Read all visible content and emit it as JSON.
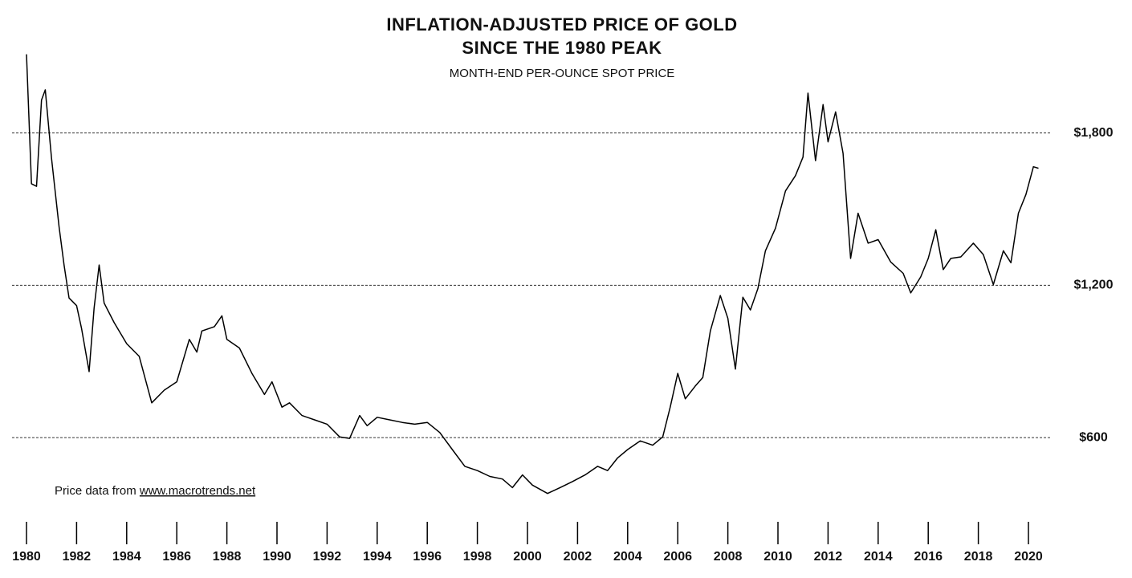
{
  "chart_data": {
    "type": "line",
    "title": "INFLATION-ADJUSTED PRICE OF GOLD",
    "title2": "SINCE THE 1980 PEAK",
    "subtitle": "MONTH-END PER-OUNCE SPOT PRICE",
    "source": "Price data from",
    "source_link": "www.macrotrends.net",
    "color": "#000000",
    "grid": true,
    "x": [
      1980.0,
      1980.2,
      1980.4,
      1980.6,
      1980.75,
      1981.0,
      1981.3,
      1981.5,
      1981.7,
      1982.0,
      1982.2,
      1982.5,
      1982.7,
      1982.9,
      1983.1,
      1983.5,
      1984.0,
      1984.5,
      1985.0,
      1985.5,
      1986.0,
      1986.5,
      1986.8,
      1987.0,
      1987.5,
      1987.8,
      1988.0,
      1988.5,
      1989.0,
      1989.5,
      1989.8,
      1990.2,
      1990.5,
      1991.0,
      1991.5,
      1992.0,
      1992.5,
      1992.9,
      1993.3,
      1993.6,
      1994.0,
      1994.5,
      1995.0,
      1995.5,
      1996.0,
      1996.5,
      1997.0,
      1997.5,
      1998.0,
      1998.5,
      1999.0,
      1999.4,
      1999.8,
      2000.2,
      2000.8,
      2001.3,
      2001.8,
      2002.3,
      2002.8,
      2003.2,
      2003.6,
      2004.0,
      2004.5,
      2005.0,
      2005.4,
      2005.7,
      2006.0,
      2006.3,
      2006.7,
      2007.0,
      2007.3,
      2007.7,
      2008.0,
      2008.3,
      2008.6,
      2008.9,
      2009.2,
      2009.5,
      2009.9,
      2010.3,
      2010.7,
      2011.0,
      2011.2,
      2011.5,
      2011.8,
      2012.0,
      2012.3,
      2012.6,
      2012.9,
      2013.2,
      2013.6,
      2014.0,
      2014.5,
      2015.0,
      2015.3,
      2015.7,
      2016.0,
      2016.3,
      2016.6,
      2016.9,
      2017.3,
      2017.8,
      2018.2,
      2018.6,
      2019.0,
      2019.3,
      2019.6,
      2019.9,
      2020.2,
      2020.4
    ],
    "values": [
      2110,
      1600,
      1590,
      1930,
      1970,
      1700,
      1430,
      1280,
      1150,
      1120,
      1030,
      860,
      1110,
      1280,
      1130,
      1053,
      970,
      920,
      737,
      787,
      820,
      987,
      937,
      1020,
      1037,
      1080,
      987,
      953,
      853,
      770,
      820,
      720,
      737,
      687,
      670,
      653,
      603,
      597,
      687,
      647,
      680,
      670,
      660,
      653,
      660,
      620,
      553,
      487,
      470,
      447,
      437,
      403,
      453,
      413,
      380,
      403,
      427,
      453,
      487,
      470,
      520,
      553,
      587,
      570,
      603,
      720,
      853,
      753,
      803,
      837,
      1020,
      1160,
      1070,
      870,
      1153,
      1103,
      1187,
      1336,
      1425,
      1572,
      1632,
      1705,
      1957,
      1691,
      1912,
      1765,
      1883,
      1720,
      1306,
      1484,
      1366,
      1380,
      1292,
      1247,
      1170,
      1233,
      1306,
      1419,
      1262,
      1306,
      1312,
      1366,
      1321,
      1203,
      1336,
      1289,
      1484,
      1558,
      1667,
      1661
    ],
    "xlim": [
      1980,
      2020
    ],
    "xticks": [
      1980,
      1982,
      1984,
      1986,
      1988,
      1990,
      1992,
      1994,
      1996,
      1998,
      2000,
      2002,
      2004,
      2006,
      2008,
      2010,
      2012,
      2014,
      2016,
      2018,
      2020
    ],
    "ylim": [
      300,
      2150
    ],
    "yticks": [
      {
        "value": 600,
        "label": "$600"
      },
      {
        "value": 1200,
        "label": "$1,200"
      },
      {
        "value": 1800,
        "label": "$1,800"
      }
    ]
  }
}
